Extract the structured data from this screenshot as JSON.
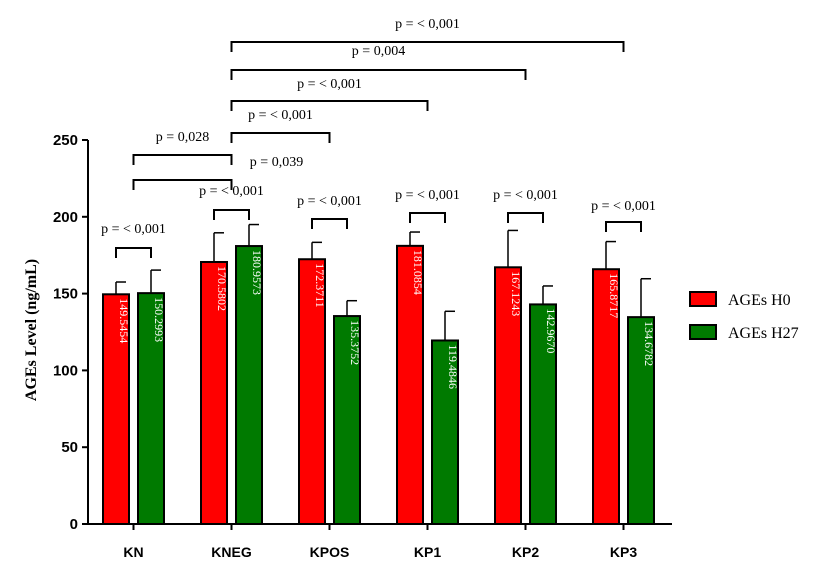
{
  "chart_data": {
    "type": "bar",
    "ylabel": "AGEs Level (ng/mL)",
    "ylim": [
      0,
      250
    ],
    "yticks": [
      0,
      50,
      100,
      150,
      200,
      250
    ],
    "categories": [
      "KN",
      "KNEG",
      "KPOS",
      "KP1",
      "KP2",
      "KP3"
    ],
    "series": [
      {
        "name": "AGEs H0",
        "color": "#ff0000",
        "values": [
          149.5454,
          170.5802,
          172.3711,
          181.0854,
          167.1243,
          165.8717
        ],
        "value_labels": [
          "149.5454",
          "170.5802",
          "172.3711",
          "181.0854",
          "167.1243",
          "165.8717"
        ],
        "errors": [
          8,
          19,
          11,
          9,
          24,
          18
        ]
      },
      {
        "name": "AGEs H27",
        "color": "#007a00",
        "values": [
          150.2993,
          180.9573,
          135.3752,
          119.4846,
          142.967,
          134.6782
        ],
        "value_labels": [
          "150.2993",
          "180.9573",
          "135.3752",
          "119.4846",
          "142.9670",
          "134.6782"
        ],
        "errors": [
          15,
          14,
          10,
          19,
          12,
          25
        ]
      }
    ],
    "legend_position": "right",
    "grid": false,
    "significance": [
      {
        "label": "p = < 0,001",
        "from": "KN.0",
        "to": "KN.1",
        "bracket_y": 248,
        "text_y": 233
      },
      {
        "label": "p = < 0,001",
        "from": "KNEG.0",
        "to": "KNEG.1",
        "bracket_y": 210,
        "text_y": 195
      },
      {
        "label": "p = < 0,001",
        "from": "KPOS.0",
        "to": "KPOS.1",
        "bracket_y": 219,
        "text_y": 205
      },
      {
        "label": "p = < 0,001",
        "from": "KP1.0",
        "to": "KP1.1",
        "bracket_y": 213,
        "text_y": 199
      },
      {
        "label": "p = < 0,001",
        "from": "KP2.0",
        "to": "KP2.1",
        "bracket_y": 213,
        "text_y": 199
      },
      {
        "label": "p = < 0,001",
        "from": "KP3.0",
        "to": "KP3.1",
        "bracket_y": 222,
        "text_y": 210
      },
      {
        "label": "p = 0,039",
        "from": "KN",
        "to": "KNEG",
        "bracket_y": 180,
        "text_y": 166,
        "text_center": "KNEG"
      },
      {
        "label": "p = 0,028",
        "from": "KN",
        "to": "KNEG",
        "bracket_y": 155,
        "text_y": 141
      },
      {
        "label": "p = < 0,001",
        "from": "KNEG",
        "to": "KPOS",
        "bracket_y": 133,
        "text_y": 119
      },
      {
        "label": "p = < 0,001",
        "from": "KNEG",
        "to": "KP1",
        "bracket_y": 101,
        "text_y": 88
      },
      {
        "label": "p = 0,004",
        "from": "KNEG",
        "to": "KP2",
        "bracket_y": 70,
        "text_y": 55
      },
      {
        "label": "p = < 0,001",
        "from": "KNEG",
        "to": "KP3",
        "bracket_y": 42,
        "text_y": 28
      }
    ]
  }
}
